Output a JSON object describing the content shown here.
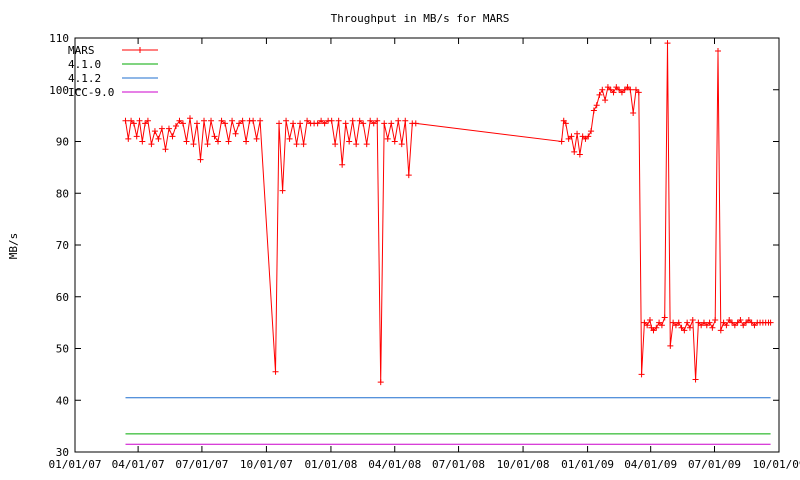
{
  "chart_data": {
    "type": "line",
    "title": "Throughput in MB/s for MARS",
    "xlabel": "",
    "ylabel": "MB/s",
    "ylim": [
      30,
      110
    ],
    "yticks": [
      30,
      40,
      50,
      60,
      70,
      80,
      90,
      100,
      110
    ],
    "xlim": [
      "2007-01-01",
      "2009-10-01"
    ],
    "xticks": [
      "01/01/07",
      "04/01/07",
      "07/01/07",
      "10/01/07",
      "01/01/08",
      "04/01/08",
      "07/01/08",
      "10/01/08",
      "01/01/09",
      "04/01/09",
      "07/01/09",
      "10/01/09"
    ],
    "xtick_dates": [
      "2007-01-01",
      "2007-04-01",
      "2007-07-01",
      "2007-10-01",
      "2008-01-01",
      "2008-04-01",
      "2008-07-01",
      "2008-10-01",
      "2009-01-01",
      "2009-04-01",
      "2009-07-01",
      "2009-10-01"
    ],
    "legend_position": "top-left",
    "grid": false,
    "series": [
      {
        "name": "MARS",
        "color": "#ff0000",
        "marker": "plus",
        "x": [
          "2007-03-14",
          "2007-03-18",
          "2007-03-22",
          "2007-03-26",
          "2007-03-30",
          "2007-04-03",
          "2007-04-07",
          "2007-04-11",
          "2007-04-15",
          "2007-04-20",
          "2007-04-25",
          "2007-04-30",
          "2007-05-05",
          "2007-05-10",
          "2007-05-15",
          "2007-05-20",
          "2007-05-25",
          "2007-05-30",
          "2007-06-04",
          "2007-06-09",
          "2007-06-14",
          "2007-06-19",
          "2007-06-24",
          "2007-06-29",
          "2007-07-04",
          "2007-07-09",
          "2007-07-14",
          "2007-07-19",
          "2007-07-24",
          "2007-07-29",
          "2007-08-03",
          "2007-08-08",
          "2007-08-13",
          "2007-08-18",
          "2007-08-23",
          "2007-08-28",
          "2007-09-02",
          "2007-09-07",
          "2007-09-12",
          "2007-09-17",
          "2007-09-22",
          "2007-10-14",
          "2007-10-19",
          "2007-10-24",
          "2007-10-29",
          "2007-11-03",
          "2007-11-08",
          "2007-11-13",
          "2007-11-18",
          "2007-11-23",
          "2007-11-28",
          "2007-12-03",
          "2007-12-08",
          "2007-12-13",
          "2007-12-18",
          "2007-12-23",
          "2007-12-28",
          "2008-01-02",
          "2008-01-07",
          "2008-01-12",
          "2008-01-17",
          "2008-01-22",
          "2008-01-27",
          "2008-02-01",
          "2008-02-06",
          "2008-02-11",
          "2008-02-16",
          "2008-02-21",
          "2008-02-26",
          "2008-03-02",
          "2008-03-07",
          "2008-03-12",
          "2008-03-17",
          "2008-03-22",
          "2008-03-27",
          "2008-04-01",
          "2008-04-06",
          "2008-04-11",
          "2008-04-16",
          "2008-04-21",
          "2008-04-26",
          "2008-05-01",
          "2008-11-25",
          "2008-11-28",
          "2008-12-01",
          "2008-12-05",
          "2008-12-09",
          "2008-12-13",
          "2008-12-17",
          "2008-12-21",
          "2008-12-25",
          "2008-12-29",
          "2009-01-02",
          "2009-01-06",
          "2009-01-10",
          "2009-01-14",
          "2009-01-18",
          "2009-01-22",
          "2009-01-26",
          "2009-01-30",
          "2009-02-03",
          "2009-02-07",
          "2009-02-11",
          "2009-02-15",
          "2009-02-19",
          "2009-02-23",
          "2009-02-27",
          "2009-03-03",
          "2009-03-07",
          "2009-03-11",
          "2009-03-15",
          "2009-03-19",
          "2009-03-23",
          "2009-03-27",
          "2009-03-31",
          "2009-04-02",
          "2009-04-05",
          "2009-04-09",
          "2009-04-13",
          "2009-04-17",
          "2009-04-21",
          "2009-04-25",
          "2009-04-29",
          "2009-05-03",
          "2009-05-07",
          "2009-05-11",
          "2009-05-15",
          "2009-05-19",
          "2009-05-23",
          "2009-05-27",
          "2009-05-31",
          "2009-06-04",
          "2009-06-08",
          "2009-06-12",
          "2009-06-16",
          "2009-06-20",
          "2009-06-24",
          "2009-06-28",
          "2009-07-02",
          "2009-07-06",
          "2009-07-10",
          "2009-07-14",
          "2009-07-18",
          "2009-07-22",
          "2009-07-26",
          "2009-07-30",
          "2009-08-03",
          "2009-08-07",
          "2009-08-11",
          "2009-08-15",
          "2009-08-19",
          "2009-08-23",
          "2009-08-27",
          "2009-08-31",
          "2009-09-04",
          "2009-09-08",
          "2009-09-12",
          "2009-09-16",
          "2009-09-19"
        ],
        "values": [
          94,
          90.5,
          94,
          93.5,
          91,
          94,
          90,
          93.5,
          94,
          89.5,
          92,
          90.5,
          92.5,
          88.5,
          92.5,
          91,
          93,
          94,
          93.5,
          90,
          94.5,
          89.5,
          93.5,
          86.5,
          94,
          89.5,
          94,
          91,
          90,
          94,
          93.5,
          90,
          94,
          91.5,
          93.5,
          94,
          90,
          94,
          94,
          90.5,
          94,
          45.5,
          93.5,
          80.5,
          94,
          90.5,
          93.5,
          89.5,
          93.5,
          89.5,
          94,
          93.5,
          93.5,
          93.5,
          94,
          93.5,
          94,
          94,
          89.5,
          94,
          85.5,
          93.5,
          90,
          94,
          89.5,
          94,
          93.5,
          89.5,
          94,
          93.5,
          94,
          43.5,
          93.5,
          90.5,
          93.5,
          90,
          94,
          89.5,
          94,
          83.5,
          93.5,
          93.5,
          90,
          94,
          93.5,
          90.5,
          91,
          88,
          91.5,
          87.5,
          91,
          90.5,
          91,
          92,
          96,
          97,
          99,
          100,
          98,
          100.5,
          100,
          99.5,
          100.5,
          100,
          99.5,
          100,
          100.5,
          100,
          95.5,
          100,
          99.5,
          45,
          55,
          54.5,
          55.5,
          54,
          53.5,
          54,
          55,
          54.5,
          56,
          109,
          50.5,
          55,
          54.5,
          55,
          54,
          53.5,
          55,
          54,
          55.5,
          44,
          55,
          54.5,
          55,
          54.5,
          55,
          54,
          55.5,
          107.5,
          53.5,
          55,
          54.5,
          55.5,
          55,
          54.5,
          55,
          55.5,
          54.5,
          55,
          55.5,
          55,
          54.5,
          55,
          55,
          55,
          55,
          55,
          55
        ]
      },
      {
        "name": "4.1.0",
        "color": "#00aa00",
        "x": [
          "2007-03-14",
          "2009-09-19"
        ],
        "values": [
          33.5,
          33.5
        ]
      },
      {
        "name": "4.1.2",
        "color": "#1f6fcf",
        "x": [
          "2007-03-14",
          "2009-09-19"
        ],
        "values": [
          40.5,
          40.5
        ]
      },
      {
        "name": "ICC-9.0",
        "color": "#cc00cc",
        "x": [
          "2007-03-14",
          "2009-09-19"
        ],
        "values": [
          31.5,
          31.5
        ]
      }
    ]
  }
}
